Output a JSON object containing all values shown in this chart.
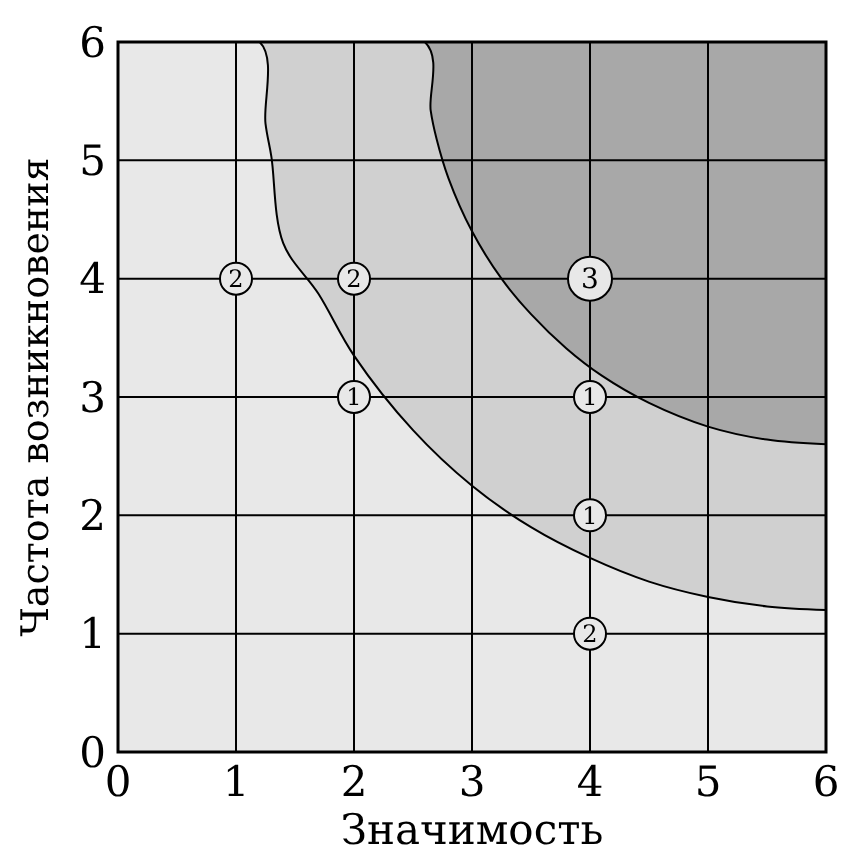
{
  "chart_data": {
    "type": "bubble",
    "xlabel": "Значимость",
    "ylabel": "Частота возникновения",
    "xlim": [
      0,
      6
    ],
    "ylim": [
      0,
      6
    ],
    "xticks": [
      0,
      1,
      2,
      3,
      4,
      5,
      6
    ],
    "yticks": [
      0,
      1,
      2,
      3,
      4,
      5,
      6
    ],
    "grid": true,
    "series": [
      {
        "type": "area",
        "color": "#d0d0d0",
        "x": [
          0,
          2.6,
          2.65,
          2.7,
          2.8,
          3,
          3.25,
          3.5,
          3.8,
          4.1,
          4.5,
          5,
          5.5,
          6
        ],
        "values": [
          6,
          6,
          5.42,
          5.18,
          4.85,
          4.4,
          4,
          3.7,
          3.41,
          3.18,
          2.95,
          2.75,
          2.64,
          2.6
        ]
      },
      {
        "type": "area",
        "color": "#e8e8e8",
        "x": [
          0,
          1.2,
          1.25,
          1.3,
          1.4,
          1.7,
          2,
          2.5,
          3,
          3.5,
          4,
          4.5,
          5,
          5.5,
          6
        ],
        "values": [
          6,
          6,
          5.31,
          5.03,
          4.3,
          3.87,
          3.35,
          2.72,
          2.25,
          1.9,
          1.64,
          1.44,
          1.31,
          1.23,
          1.2
        ]
      },
      {
        "color": "#e8e8e8",
        "x": [
          1,
          2,
          4,
          2,
          4,
          4,
          4
        ],
        "values": [
          4,
          4,
          4,
          3,
          3,
          2,
          1
        ],
        "sizes": [
          0.53,
          0.53,
          1,
          0.53,
          0.53,
          0.53,
          0.53
        ]
      }
    ],
    "annotations": [
      {
        "text": "2",
        "x": 1,
        "y": 4
      },
      {
        "text": "2",
        "x": 2,
        "y": 4
      },
      {
        "text": "3",
        "x": 4,
        "y": 4
      },
      {
        "text": "1",
        "x": 2,
        "y": 3
      },
      {
        "text": "1",
        "x": 4,
        "y": 3
      },
      {
        "text": "1",
        "x": 4,
        "y": 2
      },
      {
        "text": "2",
        "x": 4,
        "y": 1
      }
    ]
  }
}
